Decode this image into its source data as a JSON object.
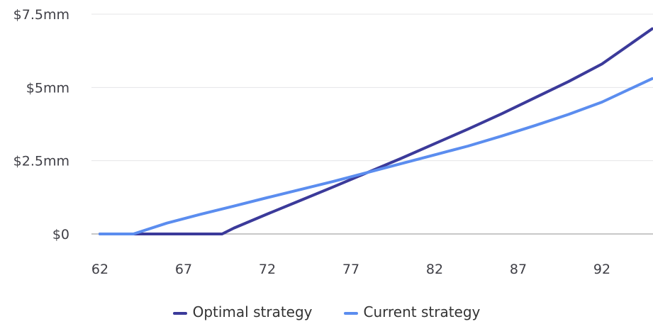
{
  "chart_data": {
    "type": "line",
    "title": "",
    "xlabel": "",
    "ylabel": "",
    "xlim": [
      62,
      95
    ],
    "ylim": [
      0,
      7.5
    ],
    "x_ticks": [
      62,
      67,
      72,
      77,
      82,
      87,
      92
    ],
    "y_ticks": [
      0,
      2.5,
      5,
      7.5
    ],
    "y_tick_labels": [
      "$0",
      "$2.5mm",
      "$5mm",
      "$7.5mm"
    ],
    "grid": "horizontal",
    "legend_position": "bottom-center",
    "series": [
      {
        "name": "Optimal strategy",
        "color": "#3b3a9a",
        "points": [
          [
            62,
            0
          ],
          [
            64,
            0
          ],
          [
            66,
            0
          ],
          [
            68,
            0
          ],
          [
            69.3,
            0
          ],
          [
            70,
            0.2
          ],
          [
            72,
            0.68
          ],
          [
            74,
            1.15
          ],
          [
            76,
            1.62
          ],
          [
            78,
            2.1
          ],
          [
            80,
            2.58
          ],
          [
            82,
            3.08
          ],
          [
            84,
            3.58
          ],
          [
            86,
            4.1
          ],
          [
            88,
            4.65
          ],
          [
            90,
            5.2
          ],
          [
            92,
            5.8
          ],
          [
            95,
            7.0
          ]
        ]
      },
      {
        "name": "Current strategy",
        "color": "#5b8def",
        "points": [
          [
            62,
            0
          ],
          [
            64,
            0
          ],
          [
            66,
            0.37
          ],
          [
            68,
            0.67
          ],
          [
            70,
            0.95
          ],
          [
            72,
            1.24
          ],
          [
            74,
            1.52
          ],
          [
            76,
            1.8
          ],
          [
            78,
            2.1
          ],
          [
            80,
            2.4
          ],
          [
            82,
            2.7
          ],
          [
            84,
            3.0
          ],
          [
            86,
            3.34
          ],
          [
            88,
            3.7
          ],
          [
            90,
            4.08
          ],
          [
            92,
            4.5
          ],
          [
            95,
            5.3
          ]
        ]
      }
    ]
  }
}
